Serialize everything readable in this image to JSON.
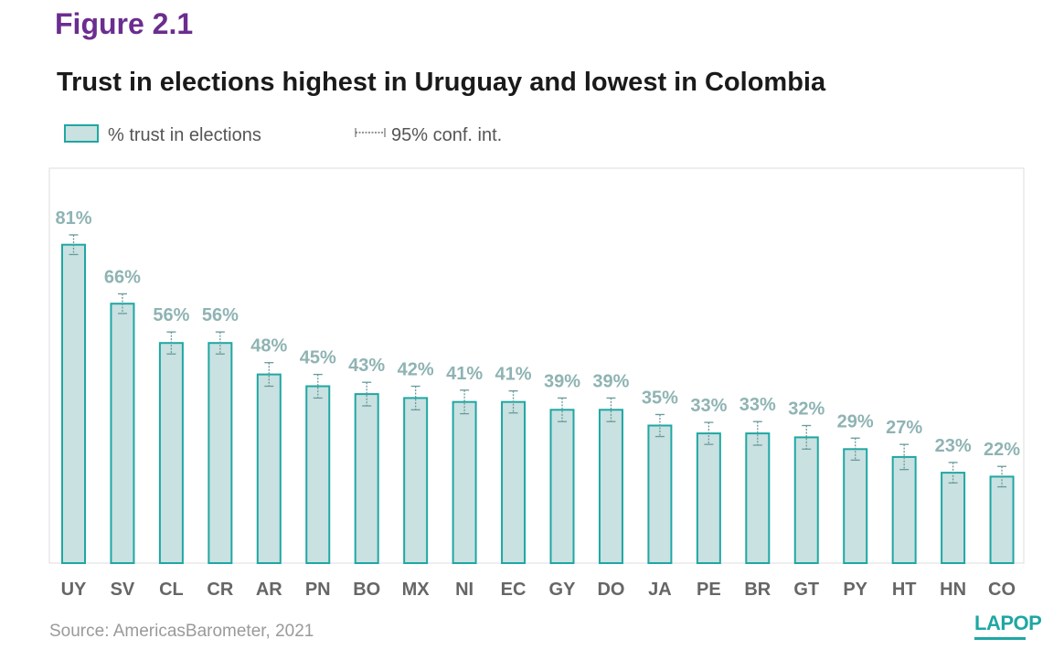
{
  "figure_label": "Figure 2.1",
  "legend": {
    "bar_label": "% trust in elections",
    "ci_label": "95% conf. int."
  },
  "source": "Source: AmericasBarometer, 2021",
  "logo_text": "LAPOP",
  "colors": {
    "bar_fill": "#c9e1e1",
    "bar_stroke": "#1fa7a3",
    "value_label": "#8fb3b3",
    "figure_label": "#6b2d8f"
  },
  "chart_data": {
    "type": "bar",
    "title": "Trust in elections highest in Uruguay and lowest in Colombia",
    "categories": [
      "UY",
      "SV",
      "CL",
      "CR",
      "AR",
      "PN",
      "BO",
      "MX",
      "NI",
      "EC",
      "GY",
      "DO",
      "JA",
      "PE",
      "BR",
      "GT",
      "PY",
      "HT",
      "HN",
      "CO"
    ],
    "values": [
      81,
      66,
      56,
      56,
      48,
      45,
      43,
      42,
      41,
      41,
      39,
      39,
      35,
      33,
      33,
      32,
      29,
      27,
      23,
      22
    ],
    "data_labels": [
      "81%",
      "66%",
      "56%",
      "56%",
      "48%",
      "45%",
      "43%",
      "42%",
      "41%",
      "41%",
      "39%",
      "39%",
      "35%",
      "33%",
      "33%",
      "32%",
      "29%",
      "27%",
      "23%",
      "22%"
    ],
    "ci_half_width": [
      2.5,
      2.5,
      2.8,
      2.8,
      3.0,
      3.0,
      3.0,
      3.0,
      3.0,
      2.8,
      3.0,
      3.0,
      2.8,
      2.8,
      3.0,
      3.0,
      2.8,
      3.2,
      2.6,
      2.6
    ],
    "ylim": [
      0,
      100
    ],
    "grid": false,
    "legend_position": "top-left",
    "xlabel": "",
    "ylabel": ""
  }
}
